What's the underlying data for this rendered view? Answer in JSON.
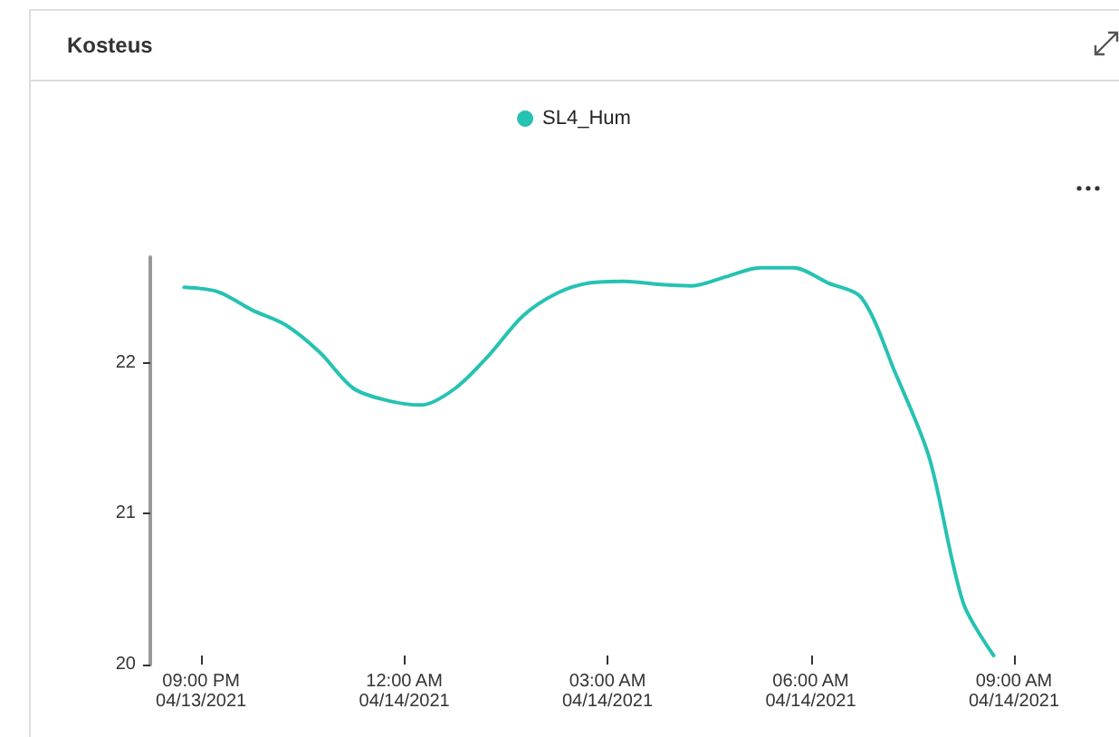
{
  "chart_data": {
    "type": "line",
    "title": "Kosteus",
    "legend": "top",
    "marker": "none",
    "line_style": "solid",
    "grid": false,
    "xlim": [
      "2021-04-13T20:15",
      "2021-04-14T09:00"
    ],
    "xticks": [
      {
        "value": "2021-04-13T21:00",
        "label": "09:00 PM\n04/13/2021"
      },
      {
        "value": "2021-04-14T00:00",
        "label": "12:00 AM\n04/14/2021"
      },
      {
        "value": "2021-04-14T03:00",
        "label": "03:00 AM\n04/14/2021"
      },
      {
        "value": "2021-04-14T06:00",
        "label": "06:00 AM\n04/14/2021"
      },
      {
        "value": "2021-04-14T09:00",
        "label": "09:00 AM\n04/14/2021"
      }
    ],
    "ylim": [
      20,
      22.7
    ],
    "yticks": [
      20,
      21,
      22
    ],
    "x": [
      "2021-04-13T20:45",
      "2021-04-13T21:15",
      "2021-04-13T21:45",
      "2021-04-13T22:15",
      "2021-04-13T22:45",
      "2021-04-13T23:15",
      "2021-04-13T23:45",
      "2021-04-14T00:15",
      "2021-04-14T00:45",
      "2021-04-14T01:15",
      "2021-04-14T01:45",
      "2021-04-14T02:15",
      "2021-04-14T02:45",
      "2021-04-14T03:15",
      "2021-04-14T03:45",
      "2021-04-14T04:15",
      "2021-04-14T04:45",
      "2021-04-14T05:15",
      "2021-04-14T05:45",
      "2021-04-14T06:15",
      "2021-04-14T06:45",
      "2021-04-14T07:15",
      "2021-04-14T07:45",
      "2021-04-14T08:15",
      "2021-04-14T08:42"
    ],
    "series": [
      {
        "name": "SL4_Hum",
        "color": "#26c2b2",
        "values": [
          22.5,
          22.47,
          22.35,
          22.25,
          22.07,
          21.83,
          21.75,
          21.72,
          21.83,
          22.05,
          22.31,
          22.46,
          22.53,
          22.54,
          22.52,
          22.51,
          22.57,
          22.63,
          22.63,
          22.53,
          22.43,
          21.93,
          21.37,
          20.41,
          20.06
        ]
      }
    ]
  }
}
